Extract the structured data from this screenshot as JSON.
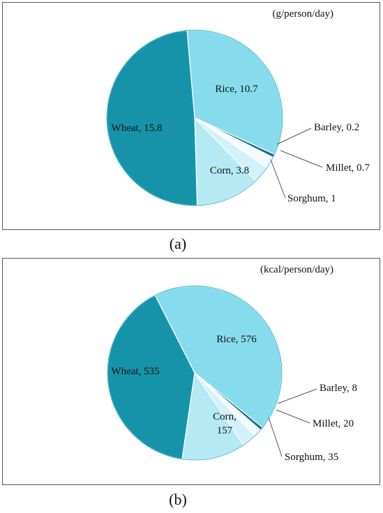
{
  "chart_data": [
    {
      "type": "pie",
      "panel": "(a)",
      "unit": "(g/person/day)",
      "slices": [
        {
          "label": "Rice",
          "value": 10.7,
          "text": "Rice, 10.7",
          "color": "#86dcec"
        },
        {
          "label": "Barley",
          "value": 0.2,
          "text": "Barley, 0.2",
          "color": "#1a6f7c"
        },
        {
          "label": "Millet",
          "value": 0.7,
          "text": "Millet,  0.7",
          "color": "#f4fbfd"
        },
        {
          "label": "Sorghum",
          "value": 1,
          "text": "Sorghum, 1",
          "color": "#d2f1f8"
        },
        {
          "label": "Corn",
          "value": 3.8,
          "text": "Corn, 3.8",
          "color": "#b5eaf4"
        },
        {
          "label": "Wheat",
          "value": 15.8,
          "text": "Wheat, 15.8",
          "color": "#1793a9"
        }
      ]
    },
    {
      "type": "pie",
      "panel": "(b)",
      "unit": "(kcal/person/day)",
      "slices": [
        {
          "label": "Rice",
          "value": 576,
          "text": "Rice, 576",
          "color": "#86dcec"
        },
        {
          "label": "Barley",
          "value": 8,
          "text": "Barley,  8",
          "color": "#1a6f7c"
        },
        {
          "label": "Millet",
          "value": 20,
          "text": "Millet,  20",
          "color": "#f4fbfd"
        },
        {
          "label": "Sorghum",
          "value": 35,
          "text": "Sorghum, 35",
          "color": "#d2f1f8"
        },
        {
          "label": "Corn",
          "value": 157,
          "text": "Corn,\n157",
          "color": "#b5eaf4"
        },
        {
          "label": "Wheat",
          "value": 535,
          "text": "Wheat, 535",
          "color": "#1793a9"
        }
      ]
    }
  ]
}
